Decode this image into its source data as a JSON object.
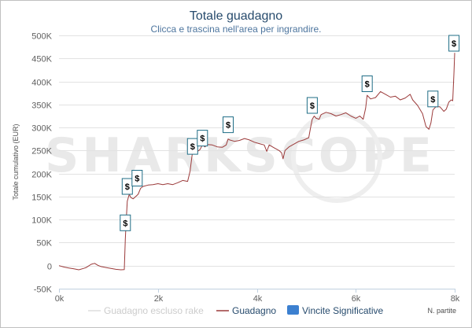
{
  "chart_data": {
    "type": "line",
    "title": "Totale guadagno",
    "subtitle": "Clicca e trascina nell'area per ingrandire.",
    "ylabel": "Totale cumulativo (EUR)",
    "xlabel": "N. partite",
    "xlim": [
      0,
      8000
    ],
    "ylim": [
      -50000,
      500000
    ],
    "x_ticks": [
      "0k",
      "2k",
      "4k",
      "6k",
      "8k"
    ],
    "y_ticks": [
      "-50K",
      "0",
      "50K",
      "100K",
      "150K",
      "200K",
      "250K",
      "300K",
      "350K",
      "400K",
      "450K",
      "500K"
    ],
    "grid": true,
    "legend_position": "bottom",
    "watermark": "SHARKSCOPE",
    "series": [
      {
        "name": "Guadagno",
        "color": "#9b3a3a",
        "points": [
          [
            0,
            0
          ],
          [
            100,
            -3000
          ],
          [
            200,
            -5000
          ],
          [
            300,
            -7000
          ],
          [
            400,
            -9000
          ],
          [
            500,
            -6000
          ],
          [
            550,
            -4000
          ],
          [
            650,
            3000
          ],
          [
            720,
            5000
          ],
          [
            780,
            1000
          ],
          [
            850,
            -2000
          ],
          [
            950,
            -4000
          ],
          [
            1050,
            -6000
          ],
          [
            1150,
            -8000
          ],
          [
            1250,
            -9000
          ],
          [
            1320,
            -8500
          ],
          [
            1340,
            58000
          ],
          [
            1360,
            100000
          ],
          [
            1380,
            140000
          ],
          [
            1420,
            155000
          ],
          [
            1450,
            148000
          ],
          [
            1500,
            145000
          ],
          [
            1550,
            150000
          ],
          [
            1600,
            155000
          ],
          [
            1650,
            168000
          ],
          [
            1700,
            172000
          ],
          [
            1800,
            175000
          ],
          [
            1900,
            176000
          ],
          [
            2000,
            178000
          ],
          [
            2100,
            176000
          ],
          [
            2200,
            178000
          ],
          [
            2300,
            176000
          ],
          [
            2400,
            180000
          ],
          [
            2500,
            185000
          ],
          [
            2600,
            183000
          ],
          [
            2650,
            205000
          ],
          [
            2700,
            248000
          ],
          [
            2760,
            250000
          ],
          [
            2800,
            248000
          ],
          [
            2850,
            252000
          ],
          [
            2900,
            262000
          ],
          [
            2950,
            258000
          ],
          [
            3000,
            263000
          ],
          [
            3100,
            262000
          ],
          [
            3200,
            258000
          ],
          [
            3300,
            257000
          ],
          [
            3380,
            262000
          ],
          [
            3420,
            275000
          ],
          [
            3450,
            273000
          ],
          [
            3550,
            270000
          ],
          [
            3650,
            272000
          ],
          [
            3750,
            276000
          ],
          [
            3850,
            273000
          ],
          [
            3950,
            268000
          ],
          [
            4050,
            265000
          ],
          [
            4150,
            262000
          ],
          [
            4200,
            248000
          ],
          [
            4250,
            262000
          ],
          [
            4350,
            256000
          ],
          [
            4450,
            250000
          ],
          [
            4500,
            245000
          ],
          [
            4530,
            232000
          ],
          [
            4570,
            250000
          ],
          [
            4650,
            258000
          ],
          [
            4750,
            264000
          ],
          [
            4850,
            270000
          ],
          [
            4950,
            273000
          ],
          [
            5050,
            278000
          ],
          [
            5080,
            296000
          ],
          [
            5120,
            318000
          ],
          [
            5160,
            325000
          ],
          [
            5200,
            320000
          ],
          [
            5260,
            318000
          ],
          [
            5300,
            328000
          ],
          [
            5400,
            333000
          ],
          [
            5500,
            330000
          ],
          [
            5600,
            325000
          ],
          [
            5700,
            328000
          ],
          [
            5800,
            332000
          ],
          [
            5900,
            325000
          ],
          [
            6000,
            320000
          ],
          [
            6080,
            325000
          ],
          [
            6150,
            318000
          ],
          [
            6200,
            342000
          ],
          [
            6230,
            370000
          ],
          [
            6300,
            362000
          ],
          [
            6400,
            365000
          ],
          [
            6500,
            378000
          ],
          [
            6600,
            372000
          ],
          [
            6700,
            366000
          ],
          [
            6800,
            368000
          ],
          [
            6900,
            360000
          ],
          [
            7000,
            364000
          ],
          [
            7100,
            372000
          ],
          [
            7150,
            360000
          ],
          [
            7250,
            348000
          ],
          [
            7350,
            330000
          ],
          [
            7420,
            302000
          ],
          [
            7480,
            296000
          ],
          [
            7520,
            310000
          ],
          [
            7560,
            338000
          ],
          [
            7620,
            345000
          ],
          [
            7700,
            345000
          ],
          [
            7780,
            335000
          ],
          [
            7830,
            340000
          ],
          [
            7880,
            355000
          ],
          [
            7930,
            360000
          ],
          [
            7960,
            358000
          ],
          [
            7985,
            420000
          ],
          [
            8000,
            462000
          ]
        ]
      }
    ],
    "legend": [
      {
        "name": "Guadagno escluso rake",
        "color": "#cccccc"
      },
      {
        "name": "Guadagno",
        "color": "#9b3a3a"
      },
      {
        "name": "Vincite Significative",
        "color": "#3c80d0"
      }
    ],
    "flags": [
      {
        "label": "$",
        "x": 1340,
        "y": 93000
      },
      {
        "label": "$",
        "x": 1380,
        "y": 172000
      },
      {
        "label": "$",
        "x": 1580,
        "y": 190000
      },
      {
        "label": "$",
        "x": 2700,
        "y": 259000
      },
      {
        "label": "$",
        "x": 2900,
        "y": 277000
      },
      {
        "label": "$",
        "x": 3420,
        "y": 306000
      },
      {
        "label": "$",
        "x": 5120,
        "y": 348000
      },
      {
        "label": "$",
        "x": 6230,
        "y": 395000
      },
      {
        "label": "$",
        "x": 7560,
        "y": 362000
      },
      {
        "label": "$",
        "x": 7985,
        "y": 483000
      }
    ]
  }
}
